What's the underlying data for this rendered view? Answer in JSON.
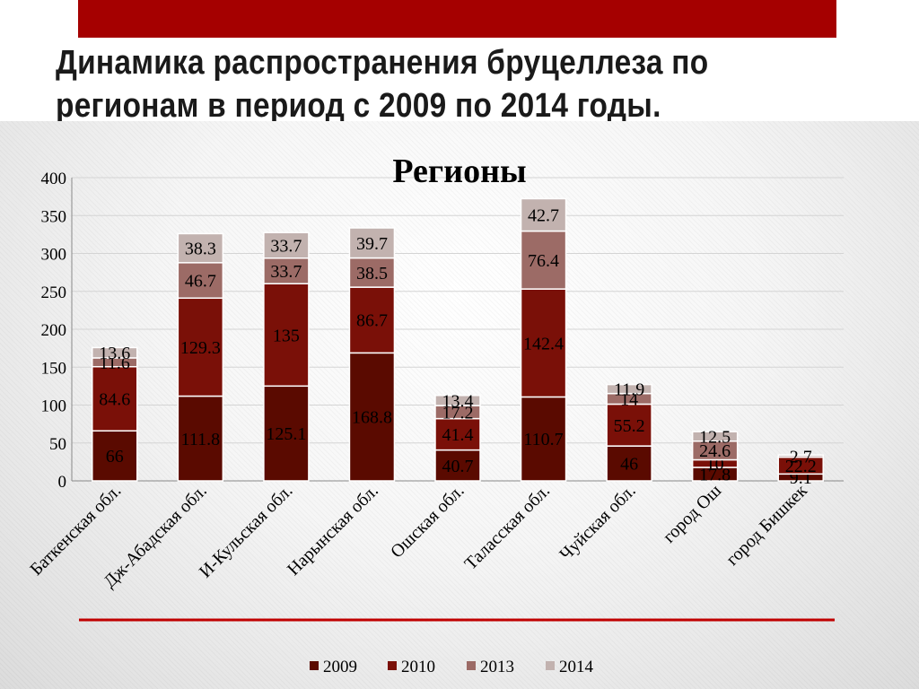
{
  "slide": {
    "title_line1": "Динамика распространения бруцеллеза по",
    "title_line2": "регионам в период с 2009 по 2014 годы."
  },
  "colors": {
    "top_bar": "#a50000",
    "divider": "#c00000"
  },
  "chart_data": {
    "type": "bar",
    "stacked": true,
    "title": "Регионы",
    "xlabel": "",
    "ylabel": "",
    "ylim": [
      0,
      400
    ],
    "yticks": [
      0,
      50,
      100,
      150,
      200,
      250,
      300,
      350,
      400
    ],
    "grid": true,
    "legend_position": "bottom",
    "categories": [
      "Баткенская обл.",
      "Дж-Абадская обл.",
      "И-Кульская обл.",
      "Нарынская обл.",
      "Ошская обл.",
      "Таласская обл.",
      "Чуйская обл.",
      "город Ош",
      "город  Бишкек"
    ],
    "series": [
      {
        "name": "2009",
        "color": "#5a0a00",
        "values": [
          66,
          111.8,
          125.1,
          168.8,
          40.7,
          110.7,
          46,
          17.8,
          9.1
        ]
      },
      {
        "name": "2010",
        "color": "#7a1008",
        "values": [
          84.6,
          129.3,
          135,
          86.7,
          41.4,
          142.4,
          55.2,
          10,
          22.2
        ]
      },
      {
        "name": "2013",
        "color": "#9c6b66",
        "values": [
          11.6,
          46.7,
          33.7,
          38.5,
          17.2,
          76.4,
          14,
          24.6,
          0
        ]
      },
      {
        "name": "2014",
        "color": "#c2b2af",
        "values": [
          13.6,
          38.3,
          33.7,
          39.7,
          13.4,
          42.7,
          11.9,
          12.5,
          2.7
        ]
      }
    ],
    "data_labels": [
      [
        "66",
        "84.6",
        "11.6",
        "13.6"
      ],
      [
        "111.8",
        "129.3",
        "46.7",
        "38.3"
      ],
      [
        "125.1",
        "135",
        "33.7",
        "33.7"
      ],
      [
        "168.8",
        "86.7",
        "38.5",
        "39.7"
      ],
      [
        "40.7",
        "41.4",
        "17.2",
        "13.4"
      ],
      [
        "110.7",
        "142.4",
        "76.4",
        "42.7"
      ],
      [
        "46",
        "55.2",
        "14",
        "11.9"
      ],
      [
        "17.8",
        "10",
        "24.6",
        "12.5"
      ],
      [
        "9.1",
        "22.2",
        "",
        "2.7"
      ]
    ]
  }
}
